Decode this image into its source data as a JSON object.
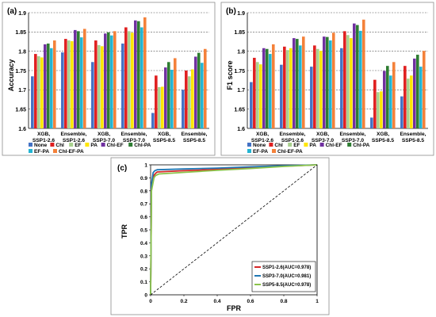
{
  "colors": {
    "None": "#4472c4",
    "Chl": "#e02020",
    "EF": "#a9d18e",
    "PA": "#ffe600",
    "Chl-EF": "#7030a0",
    "Chl-PA": "#2e7d32",
    "EF-PA": "#23b5d3",
    "Chl-EF-PA": "#f4813a",
    "ssp126_roc": "#d62728",
    "ssp370_roc": "#1f77b4",
    "ssp585_roc": "#8bc34a"
  },
  "chart_data": [
    {
      "type": "bar",
      "panel_label": "(a)",
      "ylabel": "Accuracy",
      "ylim": [
        1.6,
        1.9
      ],
      "yticks": [
        "1.6",
        "1.65",
        "1.7",
        "1.75",
        "1.8",
        "1.85",
        "1.9"
      ],
      "grid": true,
      "legend_placement": "bottom",
      "categories": [
        "XGB, SSP1-2.6",
        "Ensemble, SSP1-2.6",
        "XGB, SSP3-7.0",
        "Ensemble, SSP3-7.0",
        "XGB, SSP5-8.5",
        "Ensemble, SSP5-8.5"
      ],
      "series": [
        {
          "name": "None",
          "values": [
            1.735,
            1.797,
            1.772,
            1.82,
            1.64,
            1.7
          ]
        },
        {
          "name": "Chl",
          "values": [
            1.793,
            1.832,
            1.828,
            1.862,
            1.737,
            1.75
          ]
        },
        {
          "name": "EF",
          "values": [
            1.787,
            1.828,
            1.816,
            1.852,
            1.707,
            1.735
          ]
        },
        {
          "name": "PA",
          "values": [
            1.784,
            1.826,
            1.813,
            1.848,
            1.708,
            1.753
          ]
        },
        {
          "name": "Chl-EF",
          "values": [
            1.818,
            1.855,
            1.846,
            1.88,
            1.758,
            1.786
          ]
        },
        {
          "name": "Chl-PA",
          "values": [
            1.82,
            1.852,
            1.849,
            1.878,
            1.772,
            1.796
          ]
        },
        {
          "name": "EF-PA",
          "values": [
            1.808,
            1.836,
            1.841,
            1.862,
            1.752,
            1.77
          ]
        },
        {
          "name": "Chl-EF-PA",
          "values": [
            1.828,
            1.858,
            1.852,
            1.888,
            1.782,
            1.806
          ]
        }
      ]
    },
    {
      "type": "bar",
      "panel_label": "(b)",
      "ylabel": "F1 score",
      "ylim": [
        1.6,
        1.9
      ],
      "yticks": [
        "1.6",
        "1.65",
        "1.7",
        "1.75",
        "1.8",
        "1.85",
        "1.9"
      ],
      "grid": true,
      "legend_placement": "bottom",
      "categories": [
        "XGB, SSP1-2.6",
        "Ensemble, SSP1-2.6",
        "XGB, SSP3-7.0",
        "Ensemble, SSP3-7.0",
        "XGB, SSP5-8.5",
        "Ensemble, SSP5-8.5"
      ],
      "series": [
        {
          "name": "None",
          "values": [
            1.72,
            1.765,
            1.76,
            1.808,
            1.628,
            1.683
          ]
        },
        {
          "name": "Chl",
          "values": [
            1.783,
            1.812,
            1.815,
            1.852,
            1.726,
            1.762
          ]
        },
        {
          "name": "EF",
          "values": [
            1.772,
            1.803,
            1.806,
            1.842,
            1.694,
            1.729
          ]
        },
        {
          "name": "PA",
          "values": [
            1.766,
            1.808,
            1.801,
            1.834,
            1.696,
            1.737
          ]
        },
        {
          "name": "Chl-EF",
          "values": [
            1.808,
            1.834,
            1.838,
            1.872,
            1.749,
            1.781
          ]
        },
        {
          "name": "Chl-PA",
          "values": [
            1.806,
            1.832,
            1.837,
            1.868,
            1.762,
            1.791
          ]
        },
        {
          "name": "EF-PA",
          "values": [
            1.793,
            1.815,
            1.828,
            1.853,
            1.737,
            1.76
          ]
        },
        {
          "name": "Chl-EF-PA",
          "values": [
            1.818,
            1.838,
            1.848,
            1.882,
            1.772,
            1.801
          ]
        }
      ]
    },
    {
      "type": "line",
      "panel_label": "(c)",
      "xlabel": "FPR",
      "ylabel": "TPR",
      "xlim": [
        0,
        1
      ],
      "ylim": [
        0,
        1
      ],
      "xticks": [
        "0",
        "0.2",
        "0.4",
        "0.6",
        "0.8",
        "1"
      ],
      "yticks": [
        "0",
        "0.1",
        "0.2",
        "0.3",
        "0.4",
        "0.5",
        "0.6",
        "0.7",
        "0.8",
        "0.9",
        "1"
      ],
      "grid": false,
      "legend_placement": "bottom-right",
      "series": [
        {
          "name": "SSP1-2.6(AUC=0.978)",
          "color_key": "ssp126_roc",
          "x": [
            0,
            0.005,
            0.02,
            0.03,
            0.04,
            0.2,
            0.4,
            0.6,
            0.8,
            1.0
          ],
          "y": [
            0,
            0.82,
            0.92,
            0.935,
            0.945,
            0.955,
            0.965,
            0.978,
            0.99,
            1.0
          ]
        },
        {
          "name": "SSP3-7.0(AUC=0.981)",
          "color_key": "ssp370_roc",
          "x": [
            0,
            0.005,
            0.015,
            0.025,
            0.04,
            0.2,
            0.4,
            0.6,
            0.8,
            1.0
          ],
          "y": [
            0,
            0.85,
            0.94,
            0.955,
            0.962,
            0.968,
            0.975,
            0.985,
            0.993,
            1.0
          ]
        },
        {
          "name": "SSP5-8.5(AUC=0.978)",
          "color_key": "ssp585_roc",
          "x": [
            0,
            0.005,
            0.02,
            0.03,
            0.05,
            0.2,
            0.4,
            0.6,
            0.8,
            1.0
          ],
          "y": [
            0,
            0.8,
            0.9,
            0.918,
            0.93,
            0.942,
            0.958,
            0.972,
            0.988,
            1.0
          ]
        },
        {
          "name": "",
          "style": "dashed",
          "color": "#000000",
          "x": [
            0,
            1
          ],
          "y": [
            0,
            1
          ]
        }
      ]
    }
  ]
}
